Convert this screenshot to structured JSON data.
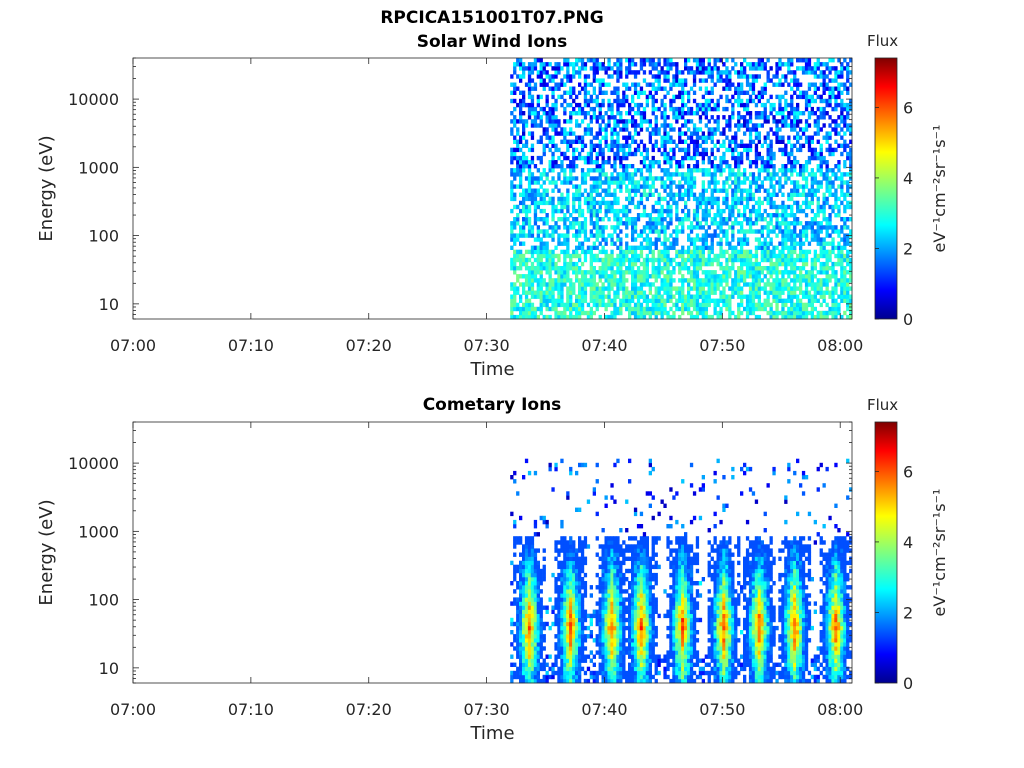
{
  "figure": {
    "title": "RPCICA151001T07.PNG"
  },
  "chart_data": [
    {
      "type": "heatmap",
      "title": "Solar Wind Ions",
      "xlabel": "Time",
      "ylabel": "Energy (eV)",
      "x_ticks": [
        "07:00",
        "07:10",
        "07:20",
        "07:30",
        "07:40",
        "07:50",
        "08:00"
      ],
      "x_range": [
        "07:00",
        "08:01"
      ],
      "y_scale": "log",
      "y_ticks": [
        "10",
        "100",
        "1000",
        "10000"
      ],
      "y_range": [
        6,
        40000
      ],
      "data_start": "07:32",
      "colorbar": {
        "title": "Flux",
        "label": "eV⁻¹cm⁻²sr⁻¹s⁻¹",
        "ticks": [
          "0",
          "2",
          "4",
          "6"
        ],
        "range": [
          0,
          7.4
        ],
        "colormap": "jet"
      },
      "description_of_values": "log10 differential flux; sparse low values (0.5–3) at high energy, moderate values (2.5–4) at low energy"
    },
    {
      "type": "heatmap",
      "title": "Cometary Ions",
      "xlabel": "Time",
      "ylabel": "Energy (eV)",
      "x_ticks": [
        "07:00",
        "07:10",
        "07:20",
        "07:30",
        "07:40",
        "07:50",
        "08:00"
      ],
      "x_range": [
        "07:00",
        "08:01"
      ],
      "y_scale": "log",
      "y_ticks": [
        "10",
        "100",
        "1000",
        "10000"
      ],
      "y_range": [
        6,
        40000
      ],
      "data_start": "07:32",
      "bursts_centered_at": [
        "07:33.5",
        "07:37",
        "07:40.5",
        "07:43",
        "07:46.5",
        "07:50",
        "07:53",
        "07:56",
        "07:59.5"
      ],
      "burst_peak_energy_eV": 40,
      "burst_peak_flux": 6,
      "colorbar": {
        "title": "Flux",
        "label": "eV⁻¹cm⁻²sr⁻¹s⁻¹",
        "ticks": [
          "0",
          "2",
          "4",
          "6"
        ],
        "range": [
          0,
          7.4
        ],
        "colormap": "jet"
      }
    }
  ]
}
